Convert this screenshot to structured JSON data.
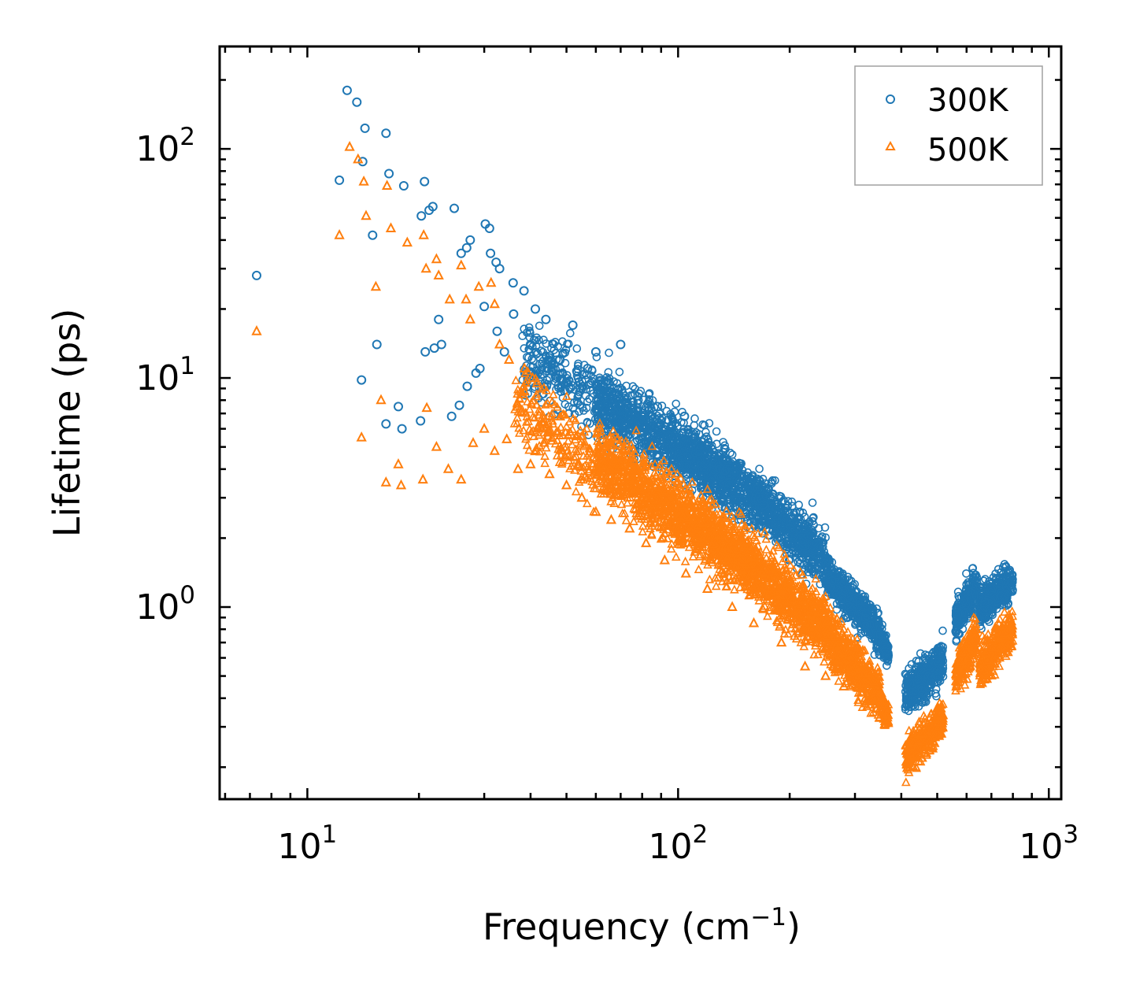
{
  "chart_data": {
    "type": "scatter",
    "title": "",
    "xlabel": "Frequency (cm",
    "xlabel_sup": "−1",
    "xlabel_close": ")",
    "ylabel": "Lifetime (ps)",
    "xscale": "log",
    "yscale": "log",
    "xlim": [
      5.8,
      1080
    ],
    "ylim": [
      0.145,
      280
    ],
    "x_ticks": [
      {
        "value": 10,
        "base": "10",
        "exp": "1"
      },
      {
        "value": 100,
        "base": "10",
        "exp": "2"
      },
      {
        "value": 1000,
        "base": "10",
        "exp": "3"
      }
    ],
    "y_ticks": [
      {
        "value": 1,
        "base": "10",
        "exp": "0"
      },
      {
        "value": 10,
        "base": "10",
        "exp": "1"
      },
      {
        "value": 100,
        "base": "10",
        "exp": "2"
      }
    ],
    "legend_position": "top-right",
    "colors": {
      "axis": "#000000",
      "legend_border": "#a0a0a0"
    },
    "series": [
      {
        "name": "300K",
        "marker": "circle",
        "color": "#1f77b4",
        "x": [
          7.3,
          12.2,
          12.8,
          13.6,
          14.1,
          14.3,
          15.0,
          16.3,
          16.6,
          18.2,
          20.3,
          20.7,
          21.3,
          21.8,
          22.6,
          23.0,
          24.9,
          26.0,
          26.9,
          27.5,
          30.2,
          31.0,
          31.2,
          32.3,
          33.0,
          35.9,
          38.4,
          41.2,
          15.4,
          14.0,
          16.3,
          17.6,
          18.0,
          20.2,
          20.8,
          22.0,
          24.5,
          25.7,
          27.0,
          28.5,
          29.2,
          30.0,
          32.5,
          34.0,
          36.0,
          40.0,
          44.0,
          48.0,
          52.0,
          57.0,
          60.0,
          65.0,
          70.0,
          78.0,
          88.0,
          96.0,
          104.0,
          118.0,
          130.0,
          150.0,
          170.0,
          200.0,
          230.0,
          260.0,
          290.0,
          320.0,
          350.0
        ],
        "y": [
          28.0,
          73.0,
          180.0,
          160.0,
          88.0,
          123.0,
          42.0,
          117.0,
          78.0,
          69.0,
          51.0,
          72.0,
          54.0,
          56.0,
          18.0,
          14.0,
          55.0,
          35.0,
          37.0,
          40.0,
          47.0,
          45.0,
          35.0,
          32.0,
          30.0,
          26.0,
          24.0,
          20.0,
          14.0,
          9.8,
          6.3,
          7.5,
          6.0,
          6.5,
          13.0,
          13.5,
          6.8,
          7.6,
          9.2,
          10.5,
          11.0,
          20.5,
          16.0,
          13.0,
          19.0,
          14.0,
          18.0,
          12.0,
          17.0,
          11.0,
          13.0,
          9.5,
          14.0,
          8.0,
          7.5,
          6.0,
          6.8,
          4.8,
          4.0,
          3.5,
          2.8,
          2.2,
          1.5,
          1.3,
          1.0,
          0.78,
          0.62
        ]
      },
      {
        "name": "500K",
        "marker": "triangle",
        "color": "#ff7f0e",
        "x": [
          7.3,
          12.2,
          13.0,
          13.7,
          14.2,
          14.4,
          15.3,
          16.4,
          16.8,
          18.6,
          20.6,
          20.9,
          22.3,
          22.6,
          24.2,
          26.0,
          26.8,
          27.5,
          29.0,
          31.3,
          32.0,
          33.0,
          35.0,
          38.5,
          40.5,
          14.0,
          15.8,
          16.3,
          17.6,
          17.9,
          20.5,
          21.0,
          22.3,
          24.0,
          26.0,
          28.0,
          30.0,
          32.0,
          34.5,
          37.0,
          40.0,
          45.0,
          50.0,
          55.0,
          60.0,
          66.0,
          74.0,
          82.0,
          92.0,
          105.0,
          120.0,
          140.0,
          160.0,
          190.0,
          220.0,
          250.0,
          280.0,
          320.0,
          350.0
        ],
        "y": [
          16.0,
          42.0,
          102.0,
          90.0,
          72.0,
          51.0,
          25.0,
          69.0,
          45.0,
          39.0,
          42.0,
          30.0,
          33.0,
          28.0,
          22.0,
          31.0,
          22.0,
          18.0,
          25.0,
          26.0,
          21.0,
          14.0,
          12.0,
          11.0,
          10.0,
          5.5,
          8.0,
          3.5,
          4.2,
          3.4,
          3.6,
          7.4,
          5.0,
          4.0,
          3.6,
          5.2,
          6.0,
          4.8,
          5.4,
          4.0,
          4.2,
          3.8,
          3.4,
          3.0,
          2.6,
          2.4,
          2.2,
          1.9,
          1.6,
          1.4,
          1.2,
          1.0,
          0.85,
          0.7,
          0.55,
          0.5,
          0.45,
          0.4,
          0.33
        ]
      }
    ]
  }
}
